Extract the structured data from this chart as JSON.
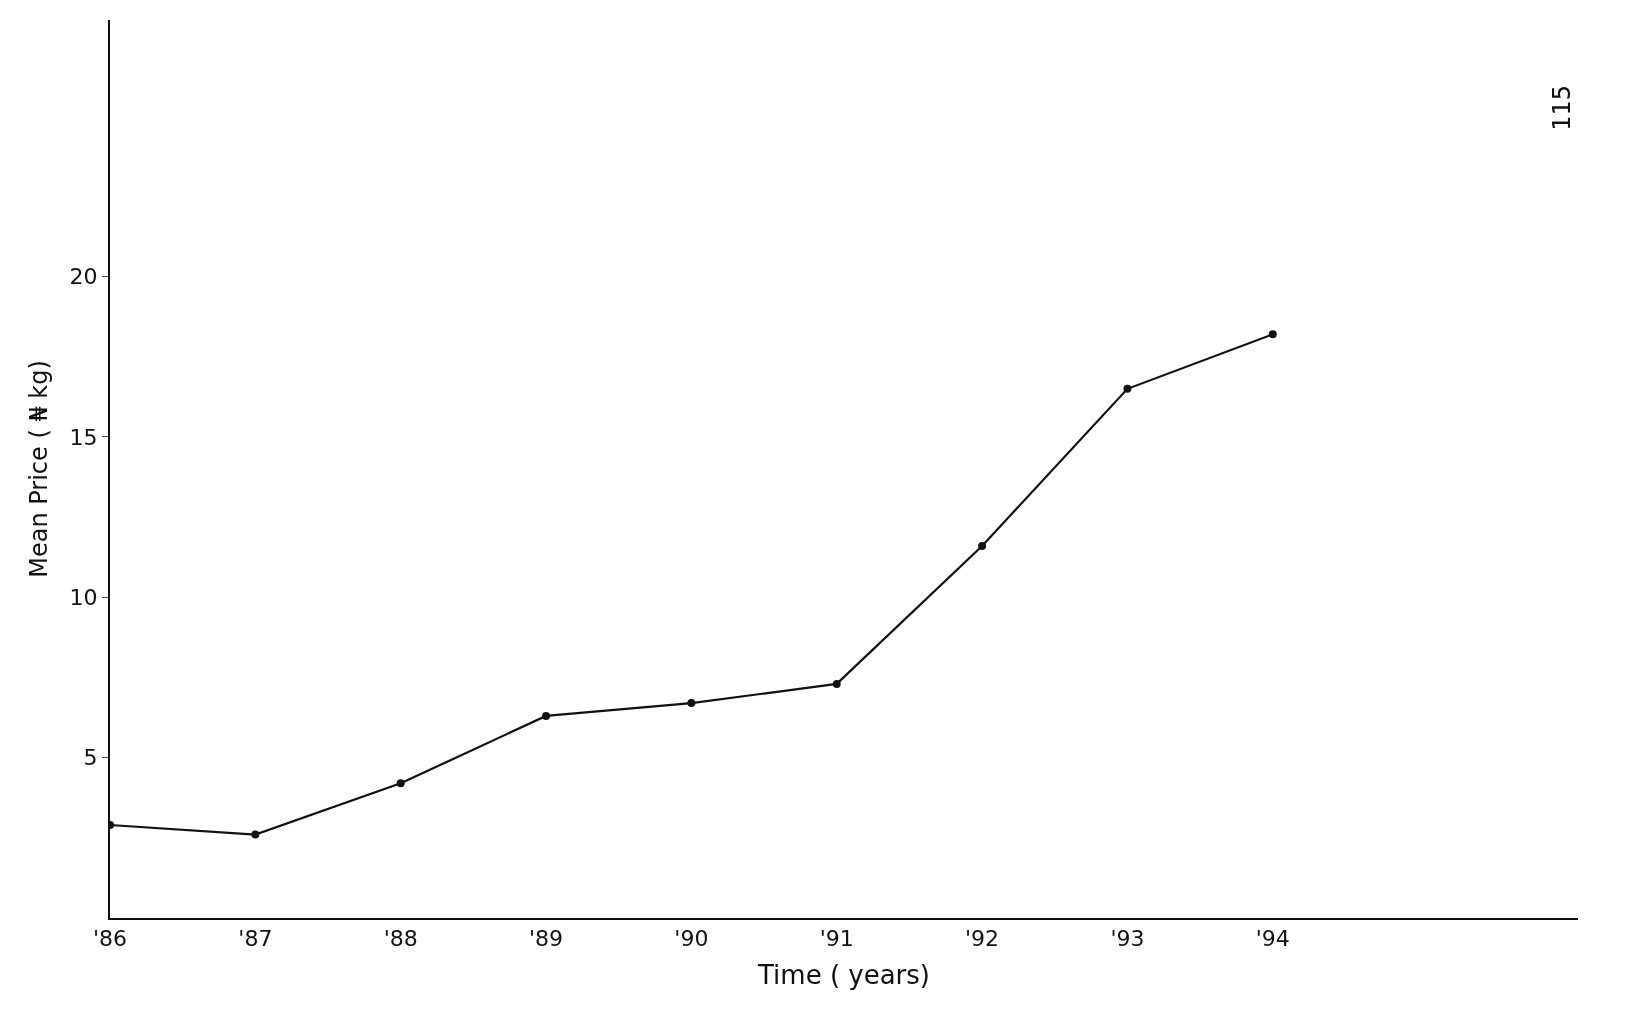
{
  "chart_data": {
    "type": "line",
    "xlabel": "Time ( years)",
    "ylabel": "Mean Price ( ₦ kg)",
    "x": [
      1986,
      1987,
      1988,
      1989,
      1990,
      1991,
      1992,
      1993,
      1994
    ],
    "series": [
      {
        "color": "#111111",
        "values": [
          2.9,
          2.6,
          4.2,
          6.3,
          6.7,
          7.3,
          11.6,
          16.5,
          18.2
        ]
      }
    ],
    "xlim": [
      1986,
      1996.1
    ],
    "ylim": [
      0,
      28
    ],
    "xticks": [
      {
        "value": 1986,
        "label": "'86"
      },
      {
        "value": 1987,
        "label": "'87"
      },
      {
        "value": 1988,
        "label": "'88"
      },
      {
        "value": 1989,
        "label": "'89"
      },
      {
        "value": 1990,
        "label": "'90"
      },
      {
        "value": 1991,
        "label": "'91"
      },
      {
        "value": 1992,
        "label": "'92"
      },
      {
        "value": 1993,
        "label": "'93"
      },
      {
        "value": 1994,
        "label": "'94"
      }
    ],
    "yticks": [
      5,
      10,
      15,
      20
    ],
    "annotations": [
      "115"
    ],
    "marker": "circle",
    "line_style": "solid"
  }
}
